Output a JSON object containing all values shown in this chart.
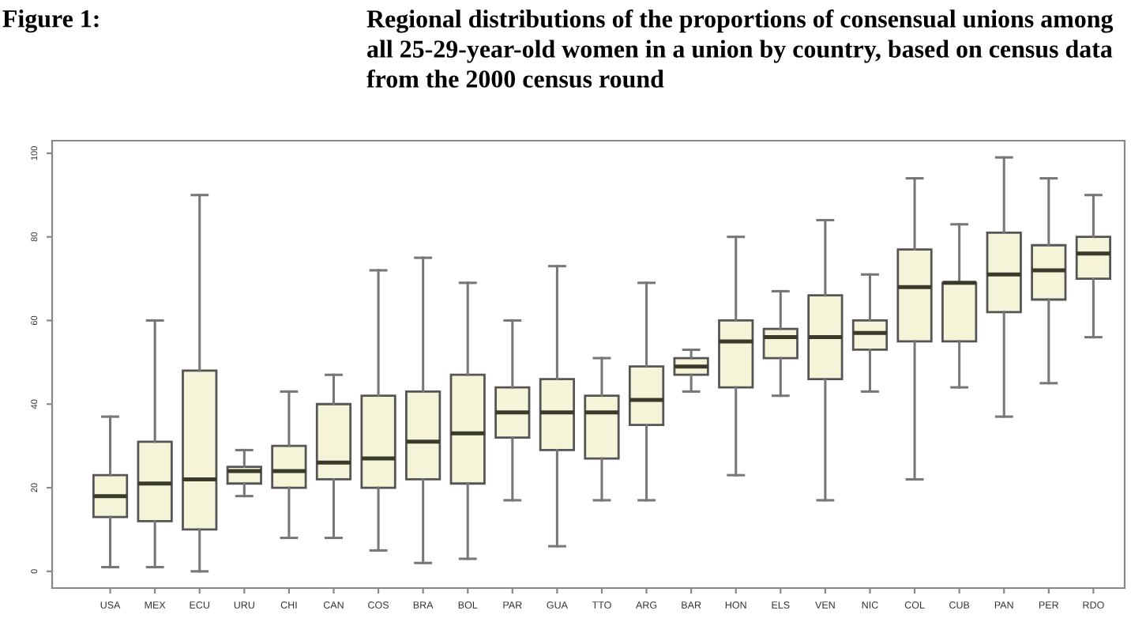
{
  "chart_data": {
    "type": "box",
    "title": "Figure 1:",
    "subtitle": "Regional distributions of the proportions of consensual unions among all 25-29-year-old women in a union by country, based on census data from the 2000 census round",
    "categories": [
      "USA",
      "MEX",
      "ECU",
      "URU",
      "CHI",
      "CAN",
      "COS",
      "BRA",
      "BOL",
      "PAR",
      "GUA",
      "TTO",
      "ARG",
      "BAR",
      "HON",
      "ELS",
      "VEN",
      "NIC",
      "COL",
      "CUB",
      "PAN",
      "PER",
      "RDO"
    ],
    "color": "#f5f3d8",
    "boxes": [
      {
        "low": 1,
        "q1": 13,
        "median": 18,
        "q3": 23,
        "high": 37
      },
      {
        "low": 1,
        "q1": 12,
        "median": 21,
        "q3": 31,
        "high": 60
      },
      {
        "low": 0,
        "q1": 10,
        "median": 22,
        "q3": 48,
        "high": 90
      },
      {
        "low": 18,
        "q1": 21,
        "median": 24,
        "q3": 25,
        "high": 29
      },
      {
        "low": 8,
        "q1": 20,
        "median": 24,
        "q3": 30,
        "high": 43
      },
      {
        "low": 8,
        "q1": 22,
        "median": 26,
        "q3": 40,
        "high": 47
      },
      {
        "low": 5,
        "q1": 20,
        "median": 27,
        "q3": 42,
        "high": 72
      },
      {
        "low": 2,
        "q1": 22,
        "median": 31,
        "q3": 43,
        "high": 75
      },
      {
        "low": 3,
        "q1": 21,
        "median": 33,
        "q3": 47,
        "high": 69
      },
      {
        "low": 17,
        "q1": 32,
        "median": 38,
        "q3": 44,
        "high": 60
      },
      {
        "low": 6,
        "q1": 29,
        "median": 38,
        "q3": 46,
        "high": 73
      },
      {
        "low": 17,
        "q1": 27,
        "median": 38,
        "q3": 42,
        "high": 51
      },
      {
        "low": 17,
        "q1": 35,
        "median": 41,
        "q3": 49,
        "high": 69
      },
      {
        "low": 43,
        "q1": 47,
        "median": 49,
        "q3": 51,
        "high": 53
      },
      {
        "low": 23,
        "q1": 44,
        "median": 55,
        "q3": 60,
        "high": 80
      },
      {
        "low": 42,
        "q1": 51,
        "median": 56,
        "q3": 58,
        "high": 67
      },
      {
        "low": 17,
        "q1": 46,
        "median": 56,
        "q3": 66,
        "high": 84
      },
      {
        "low": 43,
        "q1": 53,
        "median": 57,
        "q3": 60,
        "high": 71
      },
      {
        "low": 22,
        "q1": 55,
        "median": 68,
        "q3": 77,
        "high": 94
      },
      {
        "low": 44,
        "q1": 55,
        "median": 69,
        "q3": 69,
        "high": 83
      },
      {
        "low": 37,
        "q1": 62,
        "median": 71,
        "q3": 81,
        "high": 99
      },
      {
        "low": 45,
        "q1": 65,
        "median": 72,
        "q3": 78,
        "high": 94
      },
      {
        "low": 56,
        "q1": 70,
        "median": 76,
        "q3": 80,
        "high": 90
      }
    ],
    "ylim": [
      -4,
      103
    ],
    "yticks": [
      0,
      20,
      40,
      60,
      80,
      100
    ],
    "grid": false,
    "legend": false
  }
}
